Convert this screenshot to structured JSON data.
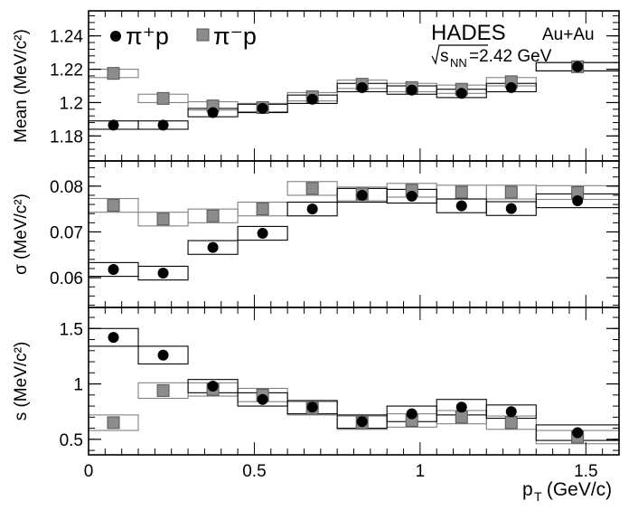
{
  "legend": {
    "items": [
      {
        "label": "π⁺p",
        "marker": "circle",
        "color": "#000000"
      },
      {
        "label": "π⁻p",
        "marker": "square",
        "color": "#8c8c8c"
      }
    ]
  },
  "annotation": {
    "experiment": "HADES",
    "system": "Au+Au",
    "energy": "=2.42 GeV",
    "energy_symbol": "s",
    "energy_sub": "NN"
  },
  "x_axis": {
    "label": "p",
    "label_sub": "T",
    "label_unit": " (GeV/c)",
    "range": [
      0,
      1.6
    ],
    "ticks": [
      0,
      0.5,
      1,
      1.5
    ],
    "tick_labels": [
      "0",
      "0.5",
      "1",
      "1.5"
    ]
  },
  "colors": {
    "pi_plus": "#000000",
    "pi_minus": "#8c8c8c",
    "box_pi_plus": "#000000",
    "box_pi_minus": "#808080"
  },
  "chart_data": [
    {
      "type": "scatter",
      "panel": "mean",
      "ylabel": "Mean (MeV/c²)",
      "ylim": [
        1.165,
        1.255
      ],
      "yticks": [
        1.18,
        1.2,
        1.22,
        1.24
      ],
      "ytick_labels": [
        "1.18",
        "1.2",
        "1.22",
        "1.24"
      ],
      "series": [
        {
          "name": "π⁺p",
          "x": [
            0.075,
            0.225,
            0.375,
            0.525,
            0.675,
            0.825,
            0.975,
            1.125,
            1.275,
            1.475
          ],
          "values": [
            1.1865,
            1.1865,
            1.194,
            1.1965,
            1.202,
            1.209,
            1.2075,
            1.2055,
            1.209,
            1.2215
          ],
          "box_halfwidth": [
            0.075,
            0.075,
            0.075,
            0.075,
            0.075,
            0.075,
            0.075,
            0.075,
            0.075,
            0.125
          ],
          "box_err": [
            0.0025,
            0.0025,
            0.0025,
            0.0025,
            0.0025,
            0.0025,
            0.0025,
            0.0025,
            0.0025,
            0.0025
          ]
        },
        {
          "name": "π⁻p",
          "x": [
            0.075,
            0.225,
            0.375,
            0.525,
            0.675,
            0.825,
            0.975,
            1.125,
            1.275,
            1.475
          ],
          "values": [
            1.2175,
            1.2025,
            1.198,
            1.197,
            1.2035,
            1.211,
            1.209,
            1.208,
            1.2125,
            1.2215
          ],
          "box_halfwidth": [
            0.075,
            0.075,
            0.075,
            0.075,
            0.075,
            0.075,
            0.075,
            0.075,
            0.075,
            0.125
          ],
          "box_err": [
            0.0025,
            0.0025,
            0.0025,
            0.0025,
            0.0025,
            0.0025,
            0.0025,
            0.0025,
            0.0025,
            0.0025
          ]
        }
      ]
    },
    {
      "type": "scatter",
      "panel": "sigma",
      "ylabel": "σ (MeV/c²)",
      "ylim": [
        0.0535,
        0.0855
      ],
      "yticks": [
        0.06,
        0.07,
        0.08
      ],
      "ytick_labels": [
        "0.06",
        "0.07",
        "0.08"
      ],
      "series": [
        {
          "name": "π⁺p",
          "x": [
            0.075,
            0.225,
            0.375,
            0.525,
            0.675,
            0.825,
            0.975,
            1.125,
            1.275,
            1.475
          ],
          "values": [
            0.0618,
            0.061,
            0.0666,
            0.0697,
            0.075,
            0.078,
            0.0778,
            0.0757,
            0.0751,
            0.0768
          ],
          "box_halfwidth": [
            0.075,
            0.075,
            0.075,
            0.075,
            0.075,
            0.075,
            0.075,
            0.075,
            0.075,
            0.125
          ],
          "box_err": [
            0.0015,
            0.0015,
            0.0015,
            0.0015,
            0.0015,
            0.0015,
            0.0015,
            0.0015,
            0.0015,
            0.0015
          ]
        },
        {
          "name": "π⁻p",
          "x": [
            0.075,
            0.225,
            0.375,
            0.525,
            0.675,
            0.825,
            0.975,
            1.125,
            1.275,
            1.475
          ],
          "values": [
            0.0758,
            0.0728,
            0.0735,
            0.075,
            0.0795,
            0.0783,
            0.0791,
            0.0787,
            0.0787,
            0.0786
          ],
          "box_halfwidth": [
            0.075,
            0.075,
            0.075,
            0.075,
            0.075,
            0.075,
            0.075,
            0.075,
            0.075,
            0.125
          ],
          "box_err": [
            0.0015,
            0.0015,
            0.0015,
            0.0015,
            0.0015,
            0.0015,
            0.0015,
            0.0015,
            0.0015,
            0.0015
          ]
        }
      ]
    },
    {
      "type": "scatter",
      "panel": "s",
      "ylabel": "s (MeV/c²)",
      "ylim": [
        0.36,
        1.69
      ],
      "yticks": [
        0.5,
        1,
        1.5
      ],
      "ytick_labels": [
        "0.5",
        "1",
        "1.5"
      ],
      "series": [
        {
          "name": "π⁺p",
          "x": [
            0.075,
            0.225,
            0.375,
            0.525,
            0.675,
            0.825,
            0.975,
            1.125,
            1.275,
            1.475
          ],
          "values": [
            1.42,
            1.26,
            0.98,
            0.86,
            0.79,
            0.66,
            0.73,
            0.79,
            0.75,
            0.56
          ],
          "box_halfwidth": [
            0.075,
            0.075,
            0.075,
            0.075,
            0.075,
            0.075,
            0.075,
            0.075,
            0.075,
            0.125
          ],
          "box_err": [
            0.08,
            0.08,
            0.06,
            0.06,
            0.06,
            0.06,
            0.07,
            0.07,
            0.06,
            0.07
          ]
        },
        {
          "name": "π⁻p",
          "x": [
            0.075,
            0.225,
            0.375,
            0.525,
            0.675,
            0.825,
            0.975,
            1.125,
            1.275,
            1.475
          ],
          "values": [
            0.65,
            0.94,
            0.95,
            0.9,
            0.78,
            0.65,
            0.67,
            0.7,
            0.65,
            0.52
          ],
          "box_halfwidth": [
            0.075,
            0.075,
            0.075,
            0.075,
            0.075,
            0.075,
            0.075,
            0.075,
            0.075,
            0.125
          ],
          "box_err": [
            0.07,
            0.07,
            0.06,
            0.06,
            0.06,
            0.06,
            0.06,
            0.06,
            0.06,
            0.06
          ]
        }
      ]
    }
  ]
}
